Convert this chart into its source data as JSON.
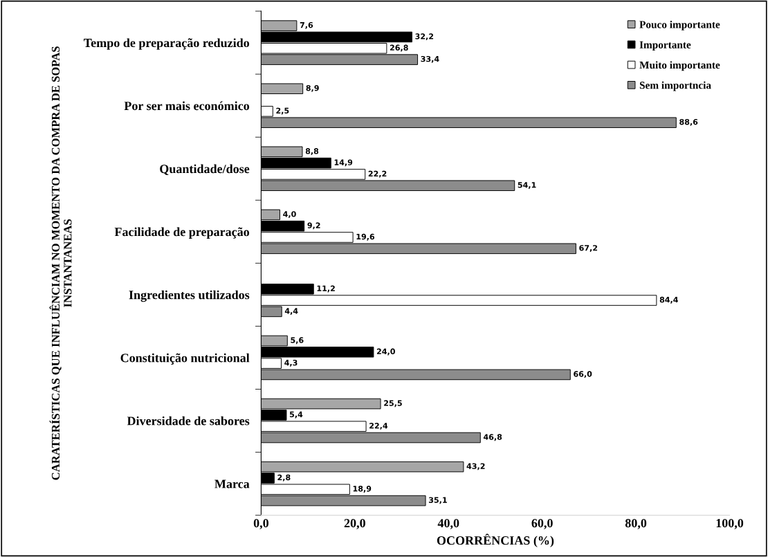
{
  "chart_data": {
    "type": "bar",
    "orientation": "horizontal",
    "xlabel": "OCORRÊNCIAS (%)",
    "ylabel": "CARATERÍSTICAS QUE INFLUÊNCIAM NO MOMENTO DA COMPRA DE SOPAS INSTANTANEAS",
    "categories": [
      "Tempo de preparação reduzido",
      "Por ser mais económico",
      "Quantidade/dose",
      "Facilidade de preparação",
      "Ingredientes utilizados",
      "Constituição nutricional",
      "Diversidade de sabores",
      "Marca"
    ],
    "series": [
      {
        "name": "Pouco importante",
        "color": "#a6a6a6",
        "values": [
          7.6,
          8.9,
          8.8,
          4.0,
          null,
          5.6,
          25.5,
          43.2
        ],
        "value_labels": [
          "7,6",
          "8,9",
          "8,8",
          "4,0",
          null,
          "5,6",
          "25,5",
          "43,2"
        ]
      },
      {
        "name": "Importante",
        "color": "#000000",
        "values": [
          32.2,
          null,
          14.9,
          9.2,
          11.2,
          24.0,
          5.4,
          2.8
        ],
        "value_labels": [
          "32,2",
          null,
          "14,9",
          "9,2",
          "11,2",
          "24,0",
          "5,4",
          "2,8"
        ]
      },
      {
        "name": "Muito importante",
        "color": "#ffffff",
        "values": [
          26.8,
          2.5,
          22.2,
          19.6,
          84.4,
          4.3,
          22.4,
          18.9
        ],
        "value_labels": [
          "26,8",
          "2,5",
          "22,2",
          "19,6",
          "84,4",
          "4,3",
          "22,4",
          "18,9"
        ]
      },
      {
        "name": "Sem importncia",
        "color": "#8c8c8c",
        "values": [
          33.4,
          88.6,
          54.1,
          67.2,
          4.4,
          66.0,
          46.8,
          35.1
        ],
        "value_labels": [
          "33,4",
          "88,6",
          "54,1",
          "67,2",
          "4,4",
          "66,0",
          "46,8",
          "35,1"
        ]
      }
    ],
    "xlim": [
      0,
      100
    ],
    "xticks": [
      {
        "value": 0,
        "label": "0,0"
      },
      {
        "value": 20,
        "label": "20,0"
      },
      {
        "value": 40,
        "label": "40,0"
      },
      {
        "value": 60,
        "label": "60,0"
      },
      {
        "value": 80,
        "label": "80,0"
      },
      {
        "value": 100,
        "label": "100,0"
      }
    ],
    "grid": false,
    "legend": "top right"
  }
}
